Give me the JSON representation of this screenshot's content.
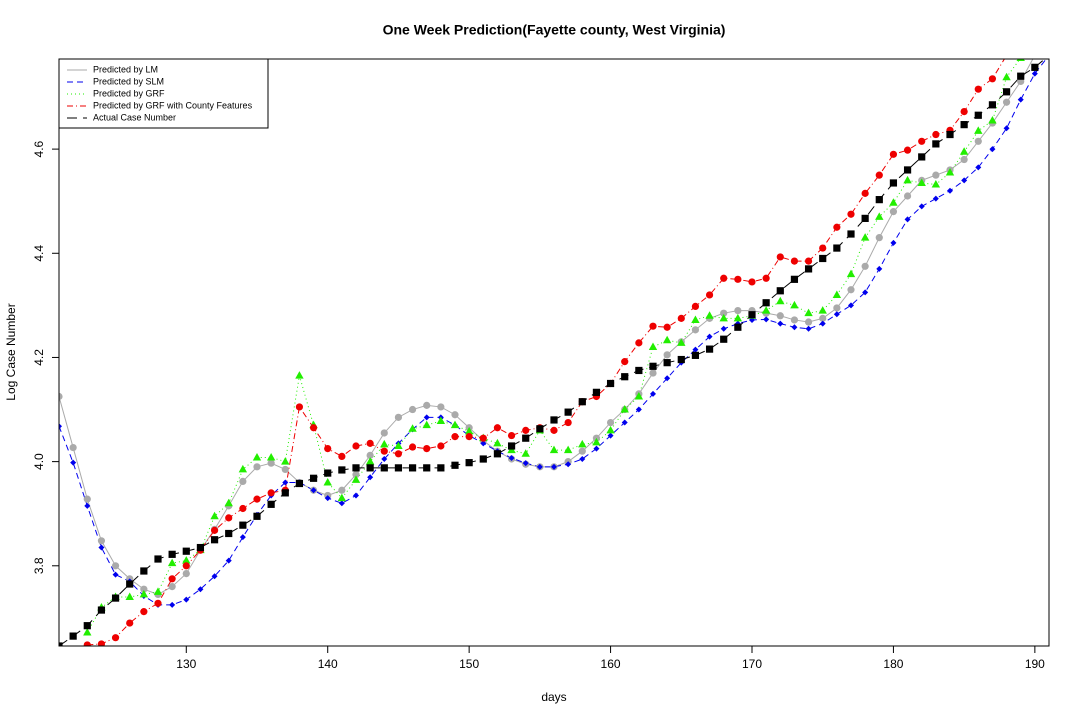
{
  "chart_data": {
    "type": "line",
    "title": "One Week Prediction(Fayette county, West Virginia)",
    "x_label": "days",
    "y_label": "Log Case Number",
    "x": [
      121,
      122,
      123,
      124,
      125,
      126,
      127,
      128,
      129,
      130,
      131,
      132,
      133,
      134,
      135,
      136,
      137,
      138,
      139,
      140,
      141,
      142,
      143,
      144,
      145,
      146,
      147,
      148,
      149,
      150,
      151,
      152,
      153,
      154,
      155,
      156,
      157,
      158,
      159,
      160,
      161,
      162,
      163,
      164,
      165,
      166,
      167,
      168,
      169,
      170,
      171,
      172,
      173,
      174,
      175,
      176,
      177,
      178,
      179,
      180,
      181,
      182,
      183,
      184,
      185,
      186,
      187,
      188,
      189,
      190,
      191
    ],
    "xlim": [
      121,
      191
    ],
    "xticks": [
      130,
      140,
      150,
      160,
      170,
      180,
      190
    ],
    "ylim": [
      3.646,
      4.773
    ],
    "yticks": [
      3.8,
      {
        "value": 4,
        "label": "4.0"
      },
      4.2,
      4.4,
      4.6
    ],
    "legend": "top-left",
    "series": [
      {
        "name": "Predicted by LM",
        "color": "#aaaaaa",
        "line_style": "solid",
        "marker": "circle",
        "values": [
          4.125,
          4.027,
          3.928,
          3.848,
          3.8,
          3.775,
          3.755,
          3.745,
          3.76,
          3.785,
          3.83,
          3.87,
          3.915,
          3.962,
          3.99,
          3.997,
          3.985,
          3.96,
          3.945,
          3.935,
          3.945,
          3.975,
          4.012,
          4.055,
          4.085,
          4.1,
          4.108,
          4.105,
          4.09,
          4.065,
          4.04,
          4.02,
          4.005,
          3.995,
          3.99,
          3.99,
          4.0,
          4.02,
          4.045,
          4.075,
          4.1,
          4.13,
          4.17,
          4.205,
          4.23,
          4.253,
          4.275,
          4.285,
          4.29,
          4.29,
          4.285,
          4.28,
          4.272,
          4.268,
          4.275,
          4.295,
          4.33,
          4.375,
          4.43,
          4.48,
          4.51,
          4.54,
          4.55,
          4.56,
          4.58,
          4.615,
          4.65,
          4.69,
          4.73,
          4.78,
          4.8
        ]
      },
      {
        "name": "Predicted by SLM",
        "color": "#0000ee",
        "line_style": "dashed",
        "marker": "diamond",
        "values": [
          4.068,
          3.998,
          3.915,
          3.835,
          3.783,
          3.77,
          3.742,
          3.725,
          3.725,
          3.735,
          3.755,
          3.78,
          3.81,
          3.855,
          3.898,
          3.935,
          3.96,
          3.96,
          3.945,
          3.93,
          3.92,
          3.935,
          3.97,
          4.005,
          4.035,
          4.062,
          4.085,
          4.085,
          4.07,
          4.05,
          4.035,
          4.02,
          4.007,
          3.997,
          3.99,
          3.99,
          3.995,
          4.005,
          4.025,
          4.05,
          4.075,
          4.1,
          4.13,
          4.16,
          4.19,
          4.215,
          4.24,
          4.255,
          4.265,
          4.272,
          4.273,
          4.265,
          4.258,
          4.255,
          4.265,
          4.283,
          4.3,
          4.325,
          4.37,
          4.42,
          4.465,
          4.49,
          4.505,
          4.52,
          4.54,
          4.565,
          4.6,
          4.64,
          4.695,
          4.745,
          4.78
        ]
      },
      {
        "name": "Predicted by GRF",
        "color": "#22ee00",
        "line_style": "dotted",
        "marker": "triangle",
        "values": [
          null,
          null,
          3.672,
          3.72,
          3.74,
          3.74,
          3.745,
          3.75,
          3.805,
          3.81,
          3.83,
          3.895,
          3.92,
          3.985,
          4.008,
          4.008,
          4.0,
          4.165,
          4.07,
          3.96,
          3.93,
          3.965,
          4.0,
          4.033,
          4.03,
          4.063,
          4.07,
          4.078,
          4.07,
          4.058,
          4.045,
          4.035,
          4.022,
          4.015,
          4.06,
          4.022,
          4.022,
          4.033,
          4.037,
          4.06,
          4.1,
          4.125,
          4.22,
          4.233,
          4.228,
          4.272,
          4.28,
          4.275,
          4.275,
          4.28,
          4.29,
          4.308,
          4.3,
          4.285,
          4.29,
          4.32,
          4.36,
          4.43,
          4.47,
          4.497,
          4.54,
          4.535,
          4.532,
          4.555,
          4.595,
          4.635,
          4.655,
          4.738,
          4.775,
          4.79,
          4.8
        ]
      },
      {
        "name": "Predicted by GRF with County Features",
        "color": "#ee0000",
        "line_style": "dotdash",
        "marker": "circle",
        "values": [
          null,
          null,
          3.648,
          3.65,
          3.662,
          3.69,
          3.712,
          3.728,
          3.775,
          3.8,
          3.83,
          3.868,
          3.892,
          3.91,
          3.928,
          3.94,
          3.945,
          4.105,
          4.065,
          4.025,
          4.01,
          4.03,
          4.035,
          4.02,
          4.015,
          4.028,
          4.025,
          4.03,
          4.048,
          4.048,
          4.045,
          4.065,
          4.05,
          4.06,
          4.065,
          4.06,
          4.075,
          4.115,
          4.125,
          4.15,
          4.192,
          4.228,
          4.26,
          4.258,
          4.275,
          4.298,
          4.32,
          4.352,
          4.35,
          4.345,
          4.352,
          4.393,
          4.385,
          4.385,
          4.41,
          4.45,
          4.475,
          4.515,
          4.55,
          4.59,
          4.598,
          4.615,
          4.628,
          4.636,
          4.672,
          4.715,
          4.735,
          4.78,
          4.8,
          4.82,
          null
        ]
      },
      {
        "name": "Actual Case Number",
        "color": "#000000",
        "line_style": "longdash",
        "marker": "square",
        "values": [
          3.646,
          3.665,
          3.685,
          3.715,
          3.738,
          3.765,
          3.79,
          3.813,
          3.822,
          3.828,
          3.835,
          3.85,
          3.862,
          3.878,
          3.895,
          3.918,
          3.94,
          3.958,
          3.968,
          3.978,
          3.984,
          3.988,
          3.988,
          3.988,
          3.988,
          3.988,
          3.988,
          3.988,
          3.993,
          3.998,
          4.005,
          4.015,
          4.03,
          4.045,
          4.063,
          4.08,
          4.095,
          4.115,
          4.133,
          4.15,
          4.163,
          4.175,
          4.183,
          4.19,
          4.196,
          4.204,
          4.216,
          4.235,
          4.258,
          4.282,
          4.305,
          4.328,
          4.35,
          4.37,
          4.39,
          4.41,
          4.437,
          4.467,
          4.503,
          4.535,
          4.56,
          4.585,
          4.61,
          4.628,
          4.647,
          4.665,
          4.685,
          4.71,
          4.74,
          4.757,
          4.78
        ]
      }
    ]
  }
}
